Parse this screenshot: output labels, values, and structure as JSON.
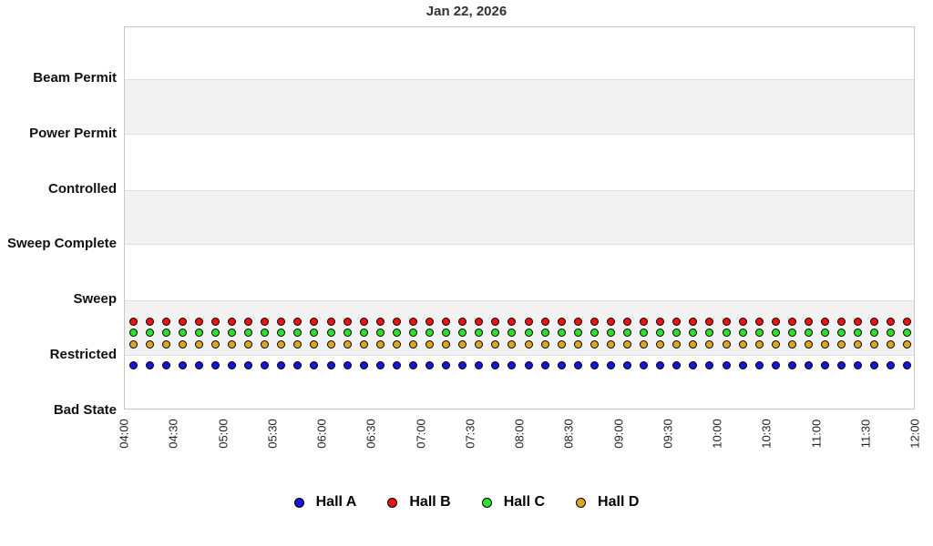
{
  "title": "Jan 22, 2026",
  "chart_data": {
    "type": "scatter",
    "title": "Jan 22, 2026",
    "x_axis": {
      "tick_labels": [
        "04:00",
        "04:30",
        "05:00",
        "05:30",
        "06:00",
        "06:30",
        "07:00",
        "07:30",
        "08:00",
        "08:30",
        "09:00",
        "09:30",
        "10:00",
        "10:30",
        "11:00",
        "11:30",
        "12:00"
      ],
      "min": "04:00",
      "max": "12:00",
      "tick_interval_minutes": 30,
      "tick_label_rotation_deg": 90
    },
    "y_axis": {
      "categories_top_to_bottom": [
        "Beam Permit",
        "Power Permit",
        "Controlled",
        "Sweep Complete",
        "Sweep",
        "Restricted",
        "Bad State"
      ],
      "shaded_band_pairs": [
        [
          "Beam Permit",
          "Power Permit"
        ],
        [
          "Controlled",
          "Sweep Complete"
        ],
        [
          "Sweep",
          "Restricted"
        ]
      ]
    },
    "sample_interval_minutes": 10,
    "sample_times": [
      "04:05",
      "04:15",
      "04:25",
      "04:35",
      "04:45",
      "04:55",
      "05:05",
      "05:15",
      "05:25",
      "05:35",
      "05:45",
      "05:55",
      "06:05",
      "06:15",
      "06:25",
      "06:35",
      "06:45",
      "06:55",
      "07:05",
      "07:15",
      "07:25",
      "07:35",
      "07:45",
      "07:55",
      "08:05",
      "08:15",
      "08:25",
      "08:35",
      "08:45",
      "08:55",
      "09:05",
      "09:15",
      "09:25",
      "09:35",
      "09:45",
      "09:55",
      "10:05",
      "10:15",
      "10:25",
      "10:35",
      "10:45",
      "10:55",
      "11:05",
      "11:15",
      "11:25",
      "11:35",
      "11:45",
      "11:55"
    ],
    "series": [
      {
        "name": "Hall A",
        "color": "#1515dd",
        "marker": "circle",
        "state_at_all_samples": "Restricted",
        "display_offset_categories": -0.18
      },
      {
        "name": "Hall B",
        "color": "#ee1111",
        "marker": "circle",
        "state_at_all_samples": "Restricted",
        "display_offset_categories": 0.62
      },
      {
        "name": "Hall C",
        "color": "#2ce02c",
        "marker": "circle",
        "state_at_all_samples": "Restricted",
        "display_offset_categories": 0.42
      },
      {
        "name": "Hall D",
        "color": "#dda524",
        "marker": "circle",
        "state_at_all_samples": "Restricted",
        "display_offset_categories": 0.21
      }
    ],
    "legend": {
      "position": "bottom-center",
      "entries": [
        "Hall A",
        "Hall B",
        "Hall C",
        "Hall D"
      ]
    },
    "colors": {
      "band_fill": "#f2f2f2",
      "band_edge": "#e0e0e0",
      "plot_border": "#c8c8c8",
      "title_text": "#333333",
      "axis_text": "#111111"
    }
  }
}
